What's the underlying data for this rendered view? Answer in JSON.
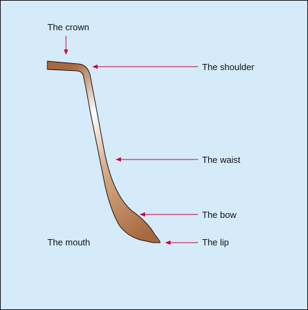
{
  "diagram": {
    "labels": {
      "crown": "The crown",
      "shoulder": "The shoulder",
      "waist": "The waist",
      "bow": "The bow",
      "lip": "The lip",
      "mouth": "The mouth"
    },
    "colors": {
      "background": "#d5ebfa",
      "arrow": "#cc0033",
      "profile_dark": "#a8683e",
      "profile_light": "#ffffff",
      "outline": "#111111"
    }
  }
}
